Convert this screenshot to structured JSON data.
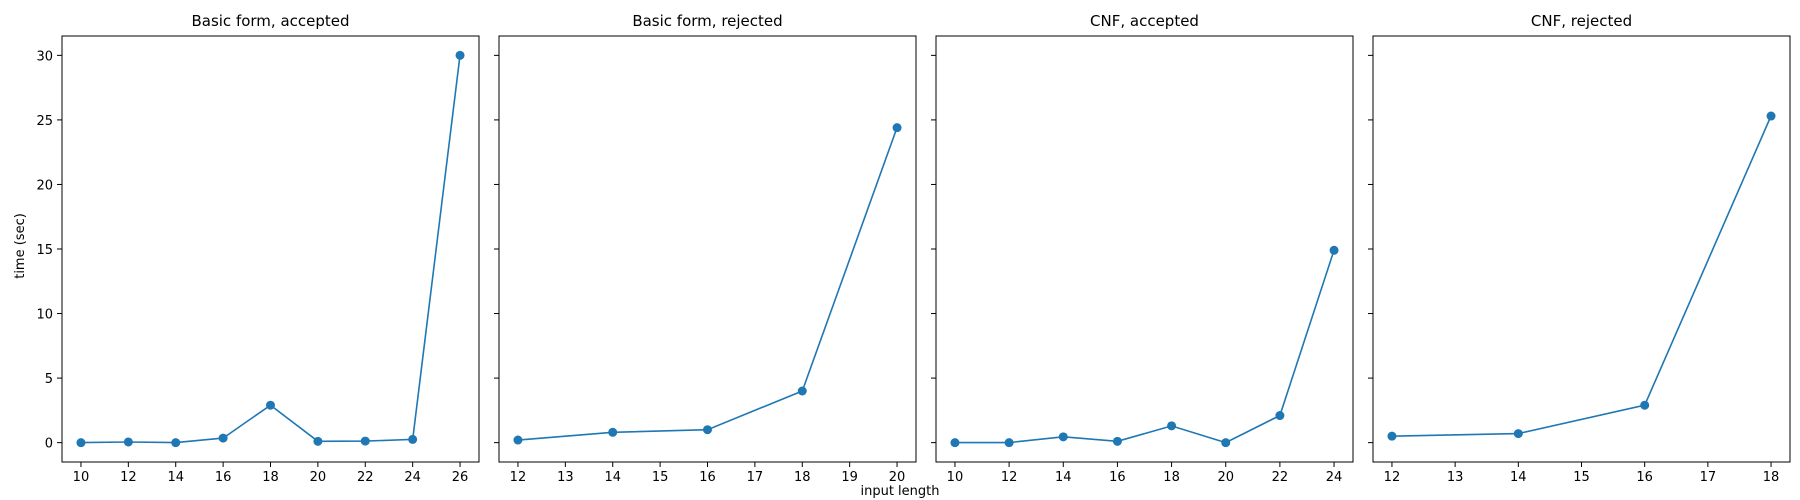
{
  "figure": {
    "ylabel": "time (sec)",
    "xlabel": "input length"
  },
  "chart_data": [
    {
      "type": "line",
      "title": "Basic form, accepted",
      "x": [
        10,
        12,
        14,
        16,
        18,
        20,
        22,
        24,
        26
      ],
      "y": [
        0.0,
        0.05,
        0.0,
        0.35,
        2.9,
        0.1,
        0.12,
        0.25,
        30.0
      ],
      "xticks": [
        10,
        12,
        14,
        16,
        18,
        20,
        22,
        24,
        26
      ],
      "xlim": [
        9.2,
        26.8
      ],
      "yticks": [
        0,
        5,
        10,
        15,
        20,
        25,
        30
      ],
      "ylim": [
        -1.5,
        31.5
      ],
      "color": "#1f77b4",
      "grid": false
    },
    {
      "type": "line",
      "title": "Basic form, rejected",
      "x": [
        12,
        14,
        16,
        18,
        20
      ],
      "y": [
        0.2,
        0.8,
        1.0,
        4.0,
        24.4
      ],
      "xticks": [
        12,
        13,
        14,
        15,
        16,
        17,
        18,
        19,
        20
      ],
      "xlim": [
        11.6,
        20.4
      ],
      "yticks": [
        0,
        5,
        10,
        15,
        20,
        25,
        30
      ],
      "ylim": [
        -1.5,
        31.5
      ],
      "color": "#1f77b4",
      "grid": false
    },
    {
      "type": "line",
      "title": "CNF, accepted",
      "x": [
        10,
        12,
        14,
        16,
        18,
        20,
        22,
        24
      ],
      "y": [
        0.0,
        0.0,
        0.45,
        0.1,
        1.3,
        0.0,
        2.1,
        14.9
      ],
      "xticks": [
        10,
        12,
        14,
        16,
        18,
        20,
        22,
        24
      ],
      "xlim": [
        9.3,
        24.7
      ],
      "yticks": [
        0,
        5,
        10,
        15,
        20,
        25,
        30
      ],
      "ylim": [
        -1.5,
        31.5
      ],
      "color": "#1f77b4",
      "grid": false
    },
    {
      "type": "line",
      "title": "CNF, rejected",
      "x": [
        12,
        14,
        16,
        18
      ],
      "y": [
        0.5,
        0.7,
        2.9,
        25.3
      ],
      "xticks": [
        12,
        13,
        14,
        15,
        16,
        17,
        18
      ],
      "xlim": [
        11.7,
        18.3
      ],
      "yticks": [
        0,
        5,
        10,
        15,
        20,
        25,
        30
      ],
      "ylim": [
        -1.5,
        31.5
      ],
      "color": "#1f77b4",
      "grid": false
    }
  ]
}
